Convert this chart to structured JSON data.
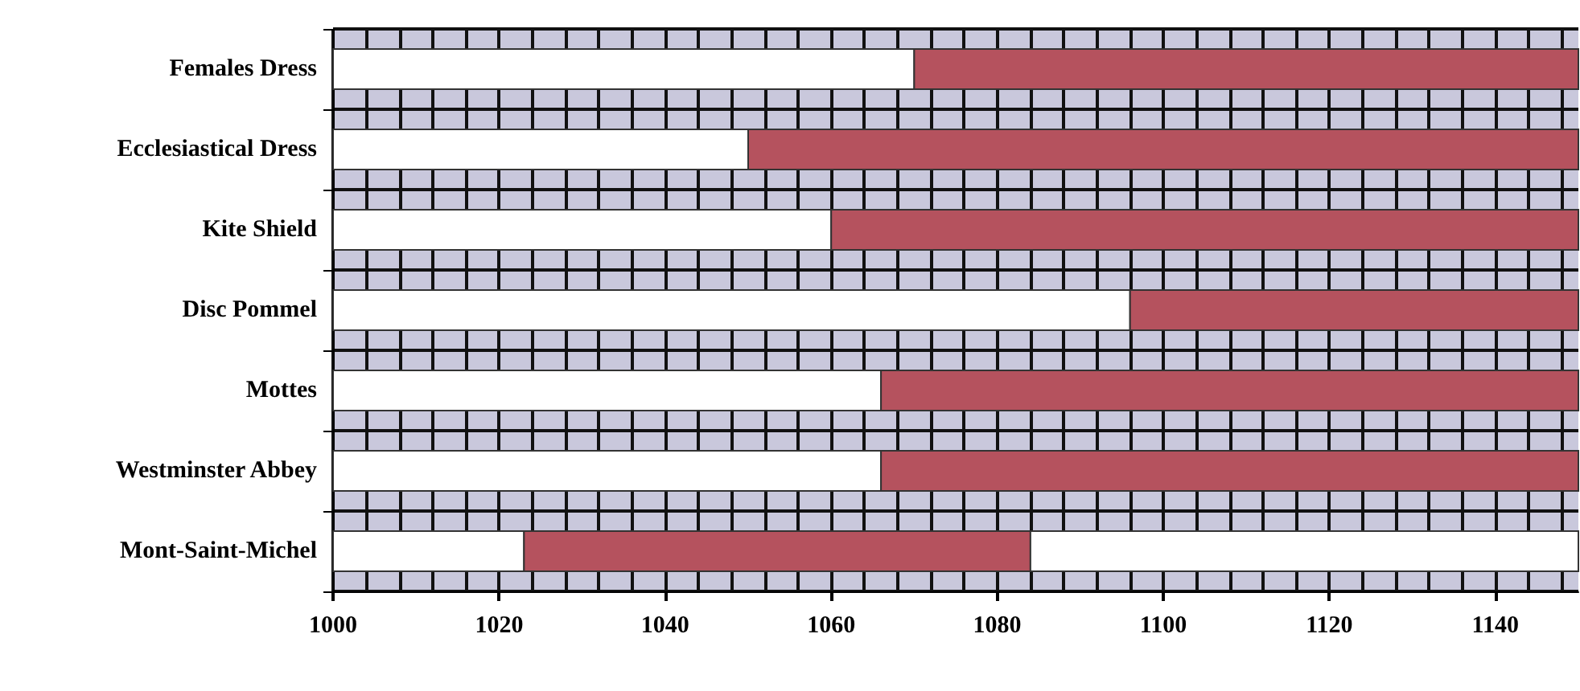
{
  "chart_data": {
    "type": "bar",
    "orientation": "horizontal",
    "categories": [
      "Females Dress",
      "Ecclesiastical Dress",
      "Kite Shield",
      "Disc Pommel",
      "Mottes",
      "Westminster Abbey",
      "Mont-Saint-Michel"
    ],
    "series": [
      {
        "color": "#ffffff",
        "base": [
          1000,
          1000,
          1000,
          1000,
          1000,
          1000,
          1000
        ],
        "values": [
          70,
          50,
          60,
          96,
          66,
          66,
          23
        ]
      },
      {
        "color": "#b5525e",
        "base": [
          1070,
          1050,
          1060,
          1096,
          1066,
          1066,
          1023
        ],
        "values": [
          80,
          100,
          90,
          54,
          84,
          84,
          61
        ]
      },
      {
        "color": "#ffffff",
        "base": [
          null,
          null,
          null,
          null,
          null,
          null,
          1084
        ],
        "values": [
          null,
          null,
          null,
          null,
          null,
          null,
          66
        ]
      }
    ],
    "xlim": [
      1000,
      1150
    ],
    "xticks": [
      1000,
      1020,
      1040,
      1060,
      1080,
      1100,
      1120,
      1140
    ],
    "grid": true
  }
}
